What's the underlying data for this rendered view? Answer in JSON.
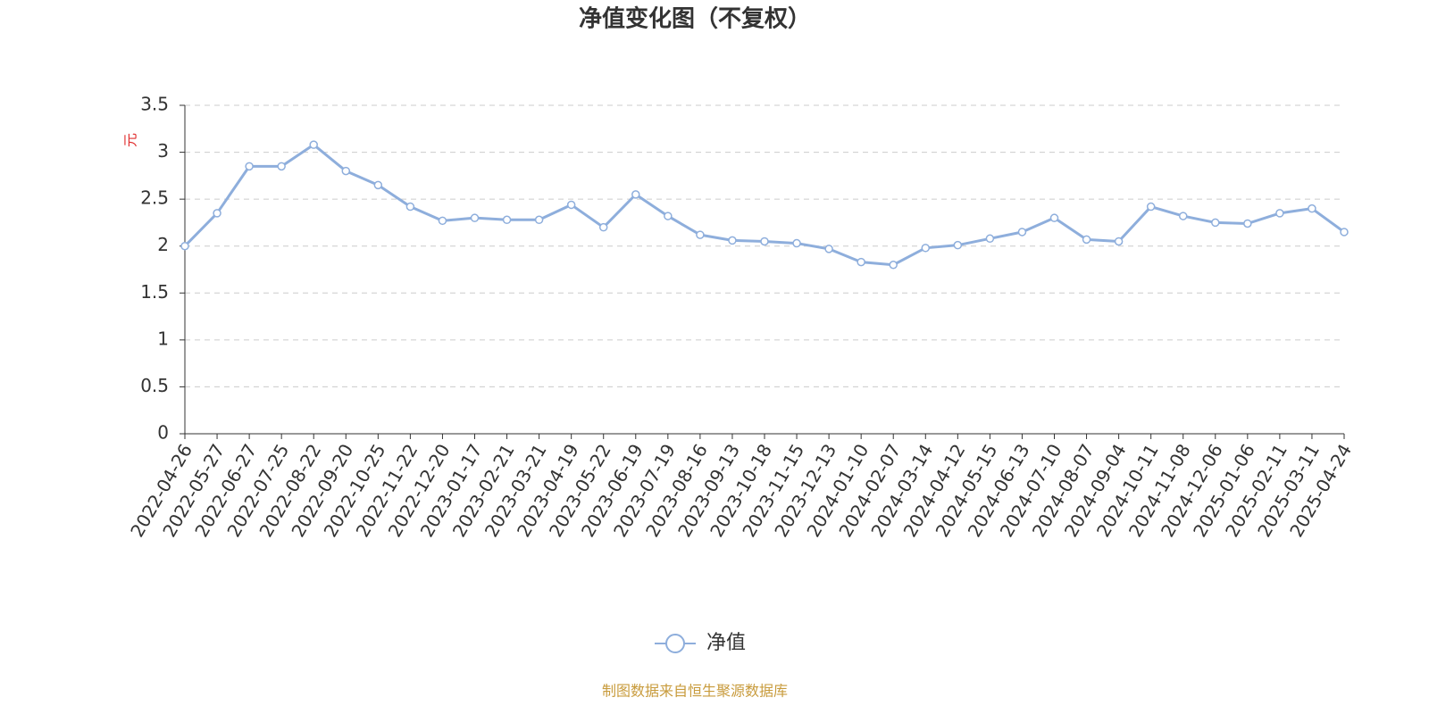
{
  "chart_data": {
    "type": "line",
    "title": "净值变化图（不复权）",
    "y_label": "元",
    "categories": [
      "2022-04-26",
      "2022-05-27",
      "2022-06-27",
      "2022-07-25",
      "2022-08-22",
      "2022-09-20",
      "2022-10-25",
      "2022-11-22",
      "2022-12-20",
      "2023-01-17",
      "2023-02-21",
      "2023-03-21",
      "2023-04-19",
      "2023-05-22",
      "2023-06-19",
      "2023-07-19",
      "2023-08-16",
      "2023-09-13",
      "2023-10-18",
      "2023-11-15",
      "2023-12-13",
      "2024-01-10",
      "2024-02-07",
      "2024-03-14",
      "2024-04-12",
      "2024-05-15",
      "2024-06-13",
      "2024-07-10",
      "2024-08-07",
      "2024-09-04",
      "2024-10-11",
      "2024-11-08",
      "2024-12-06",
      "2025-01-06",
      "2025-02-11",
      "2025-03-11",
      "2025-04-24"
    ],
    "series": [
      {
        "name": "净值",
        "color": "#8eaedc",
        "values": [
          2.0,
          2.35,
          2.85,
          2.85,
          3.08,
          2.8,
          2.65,
          2.42,
          2.27,
          2.3,
          2.28,
          2.28,
          2.44,
          2.2,
          2.55,
          2.32,
          2.12,
          2.06,
          2.05,
          2.03,
          1.97,
          1.83,
          1.8,
          1.98,
          2.01,
          2.08,
          2.15,
          2.3,
          2.07,
          2.05,
          2.42,
          2.32,
          2.25,
          2.24,
          2.35,
          2.4,
          2.15
        ]
      }
    ],
    "ylim": [
      0,
      3.5
    ],
    "yticks": [
      0,
      0.5,
      1,
      1.5,
      2,
      2.5,
      3,
      3.5
    ],
    "grid": true,
    "source": "制图数据来自恒生聚源数据库"
  }
}
